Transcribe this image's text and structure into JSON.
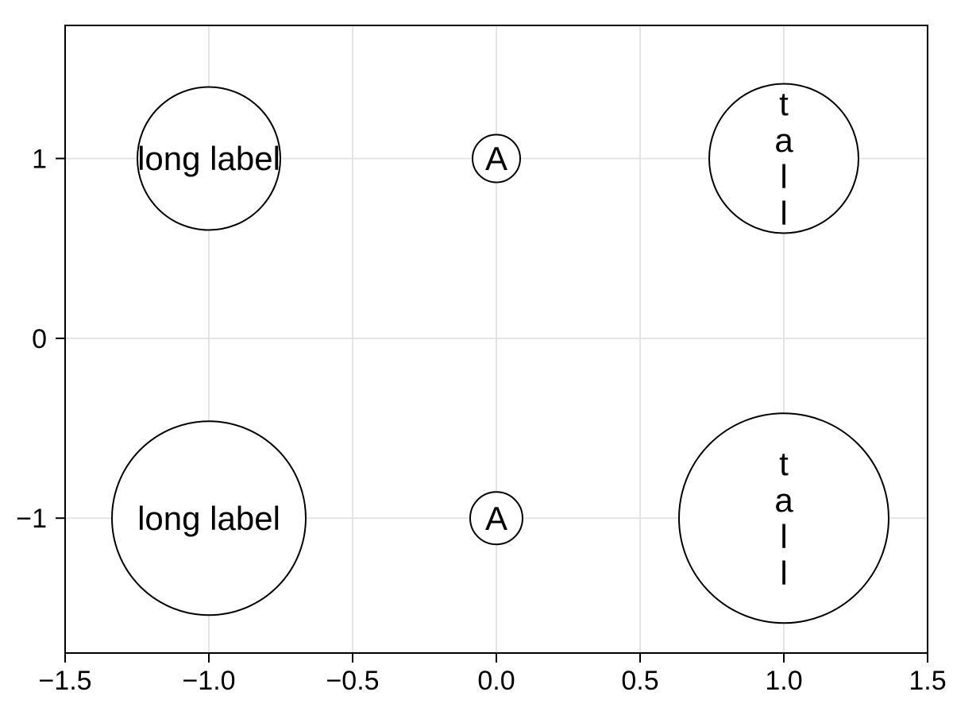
{
  "chart_data": {
    "type": "scatter",
    "title": "",
    "xlabel": "",
    "ylabel": "",
    "grid": true,
    "legend": null,
    "xlim": [
      -1.5,
      1.5
    ],
    "ylim": [
      -1.75,
      1.74
    ],
    "xticks": {
      "values": [
        -1.5,
        -1.0,
        -0.5,
        0.0,
        0.5,
        1.0,
        1.5
      ],
      "labels": [
        "−1.5",
        "−1.0",
        "−0.5",
        "0.0",
        "0.5",
        "1.0",
        "1.5"
      ]
    },
    "yticks": {
      "values": [
        1,
        0,
        -1
      ],
      "labels": [
        "1",
        "0",
        "−1"
      ]
    },
    "points": [
      {
        "x": -1,
        "y": 1,
        "label": "long label",
        "label_orientation": "horizontal",
        "radius_px": 90
      },
      {
        "x": 0,
        "y": 1,
        "label": "A",
        "label_orientation": "horizontal",
        "radius_px": 30
      },
      {
        "x": 1,
        "y": 1,
        "label": "tall",
        "label_orientation": "vertical",
        "radius_px": 94
      },
      {
        "x": -1,
        "y": -1,
        "label": "long label",
        "label_orientation": "horizontal",
        "radius_px": 122
      },
      {
        "x": 0,
        "y": -1,
        "label": "A",
        "label_orientation": "horizontal",
        "radius_px": 33
      },
      {
        "x": 1,
        "y": -1,
        "label": "tall",
        "label_orientation": "vertical",
        "radius_px": 132
      }
    ],
    "style": {
      "background": "#ffffff",
      "spine_color": "#000000",
      "grid_color": "#e2e2e2",
      "marker_stroke": "#000000",
      "marker_fill": "#ffffff",
      "text_color": "#000000"
    }
  }
}
